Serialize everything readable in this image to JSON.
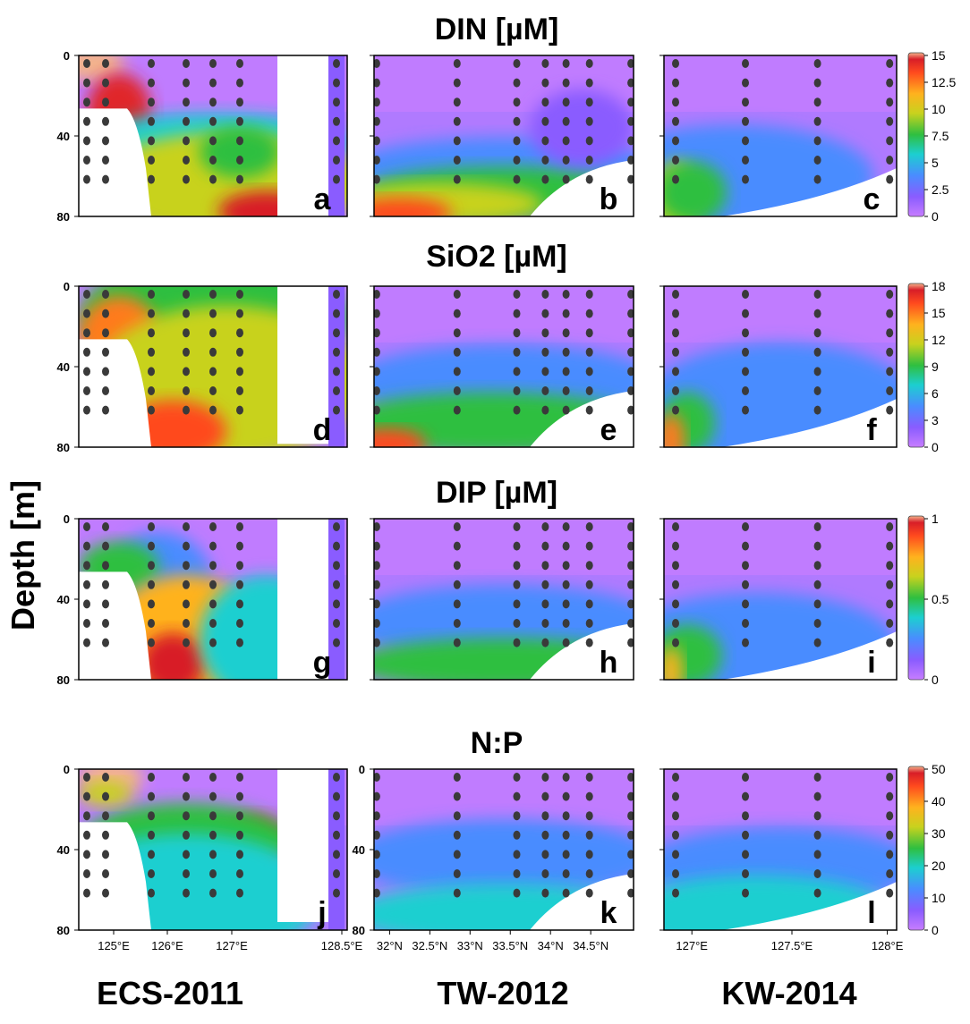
{
  "figure": {
    "ylabel": "Depth [m]",
    "column_titles": [
      "ECS-2011",
      "TW-2012",
      "KW-2014"
    ]
  },
  "chart_data": [
    {
      "type": "heatmap",
      "variable": "DIN [µM]",
      "colorbar": {
        "min": 0,
        "max": 15,
        "ticks": [
          "0",
          "2.5",
          "5",
          "7.5",
          "10",
          "12.5",
          "15"
        ]
      },
      "panels": [
        {
          "label": "a",
          "cruise": "ECS-2011",
          "ylim": [
            80,
            0
          ],
          "yticks": [
            "0",
            "40",
            "80"
          ]
        },
        {
          "label": "b",
          "cruise": "TW-2012",
          "ylim": [
            80,
            0
          ],
          "yticks": []
        },
        {
          "label": "c",
          "cruise": "KW-2014",
          "ylim": [
            80,
            0
          ],
          "yticks": []
        }
      ]
    },
    {
      "type": "heatmap",
      "variable": "SiO2 [µM]",
      "colorbar": {
        "min": 0,
        "max": 18,
        "ticks": [
          "0",
          "3",
          "6",
          "9",
          "12",
          "15",
          "18"
        ]
      },
      "panels": [
        {
          "label": "d",
          "cruise": "ECS-2011",
          "ylim": [
            80,
            0
          ],
          "yticks": [
            "0",
            "40",
            "80"
          ]
        },
        {
          "label": "e",
          "cruise": "TW-2012",
          "ylim": [
            80,
            0
          ],
          "yticks": []
        },
        {
          "label": "f",
          "cruise": "KW-2014",
          "ylim": [
            80,
            0
          ],
          "yticks": []
        }
      ]
    },
    {
      "type": "heatmap",
      "variable": "DIP [µM]",
      "colorbar": {
        "min": 0,
        "max": 1,
        "ticks": [
          "0",
          "0.5",
          "1"
        ]
      },
      "panels": [
        {
          "label": "g",
          "cruise": "ECS-2011",
          "ylim": [
            80,
            0
          ],
          "yticks": [
            "0",
            "40",
            "80"
          ]
        },
        {
          "label": "h",
          "cruise": "TW-2012",
          "ylim": [
            80,
            0
          ],
          "yticks": []
        },
        {
          "label": "i",
          "cruise": "KW-2014",
          "ylim": [
            80,
            0
          ],
          "yticks": []
        }
      ]
    },
    {
      "type": "heatmap",
      "variable": "N:P",
      "colorbar": {
        "min": 0,
        "max": 50,
        "ticks": [
          "0",
          "10",
          "20",
          "30",
          "40",
          "50"
        ]
      },
      "panels": [
        {
          "label": "j",
          "cruise": "ECS-2011",
          "ylim": [
            80,
            0
          ],
          "yticks": [
            "0",
            "40",
            "80"
          ],
          "xticks": [
            "125°E",
            "126°E",
            "127°E",
            "128.5°E"
          ]
        },
        {
          "label": "k",
          "cruise": "TW-2012",
          "ylim": [
            80,
            0
          ],
          "yticks": [
            "0",
            "40",
            "80"
          ],
          "xticks": [
            "32°N",
            "32.5°N",
            "33°N",
            "33.5°N",
            "34°N",
            "34.5°N"
          ]
        },
        {
          "label": "l",
          "cruise": "KW-2014",
          "ylim": [
            80,
            0
          ],
          "yticks": [],
          "xticks": [
            "127°E",
            "127.5°E",
            "128°E"
          ]
        }
      ]
    }
  ]
}
